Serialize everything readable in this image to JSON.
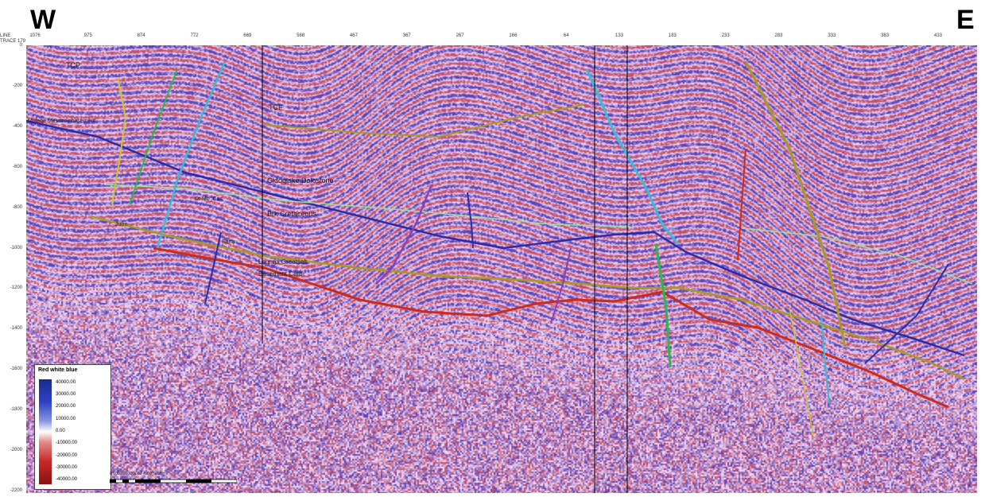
{
  "directions": {
    "west": "W",
    "east": "E"
  },
  "axis_header": {
    "line": "LINE",
    "trace": "TRACE 179"
  },
  "trace_ticks": [
    "1076",
    "975",
    "874",
    "772",
    "669",
    "568",
    "467",
    "367",
    "267",
    "166",
    "64",
    "133",
    "183",
    "233",
    "283",
    "333",
    "383",
    "433"
  ],
  "depth_ticks": [
    "0",
    "-200",
    "-400",
    "-600",
    "-800",
    "-1000",
    "-1200",
    "-1400",
    "-1600",
    "-1800",
    "-2000",
    "-2200"
  ],
  "horizon_labels": {
    "top": "TCP",
    "lower_top": "TCF",
    "w_marker": "Mulege Mesozoicbasement",
    "gidoq": "Gidoqlake Dolostone",
    "jurassic": "Brk Cretaceous",
    "left_a": "Dt Mb_Cas",
    "left_b": "Jurm",
    "low_a": "Saria",
    "low_b": "Leonga Greatsalt",
    "low_c": "Basement Carb"
  },
  "legend": {
    "title": "Red white blue",
    "values": [
      "40000.00",
      "30000.00",
      "20000.00",
      "10000.00",
      "0.00",
      "-10000.00",
      "-20000.00",
      "-30000.00",
      "-40000.00"
    ]
  },
  "scale": "0 1000 2000 3000 4000 5000m",
  "colors": {
    "red": "#cc2a1a",
    "blue": "#2a2aaa",
    "olive": "#a59a26",
    "green": "#2ab84a",
    "cyan": "#3fb8d8",
    "purple": "#8a3fb8",
    "yellow": "#c8c832",
    "lightgreen": "#98e0a0"
  }
}
